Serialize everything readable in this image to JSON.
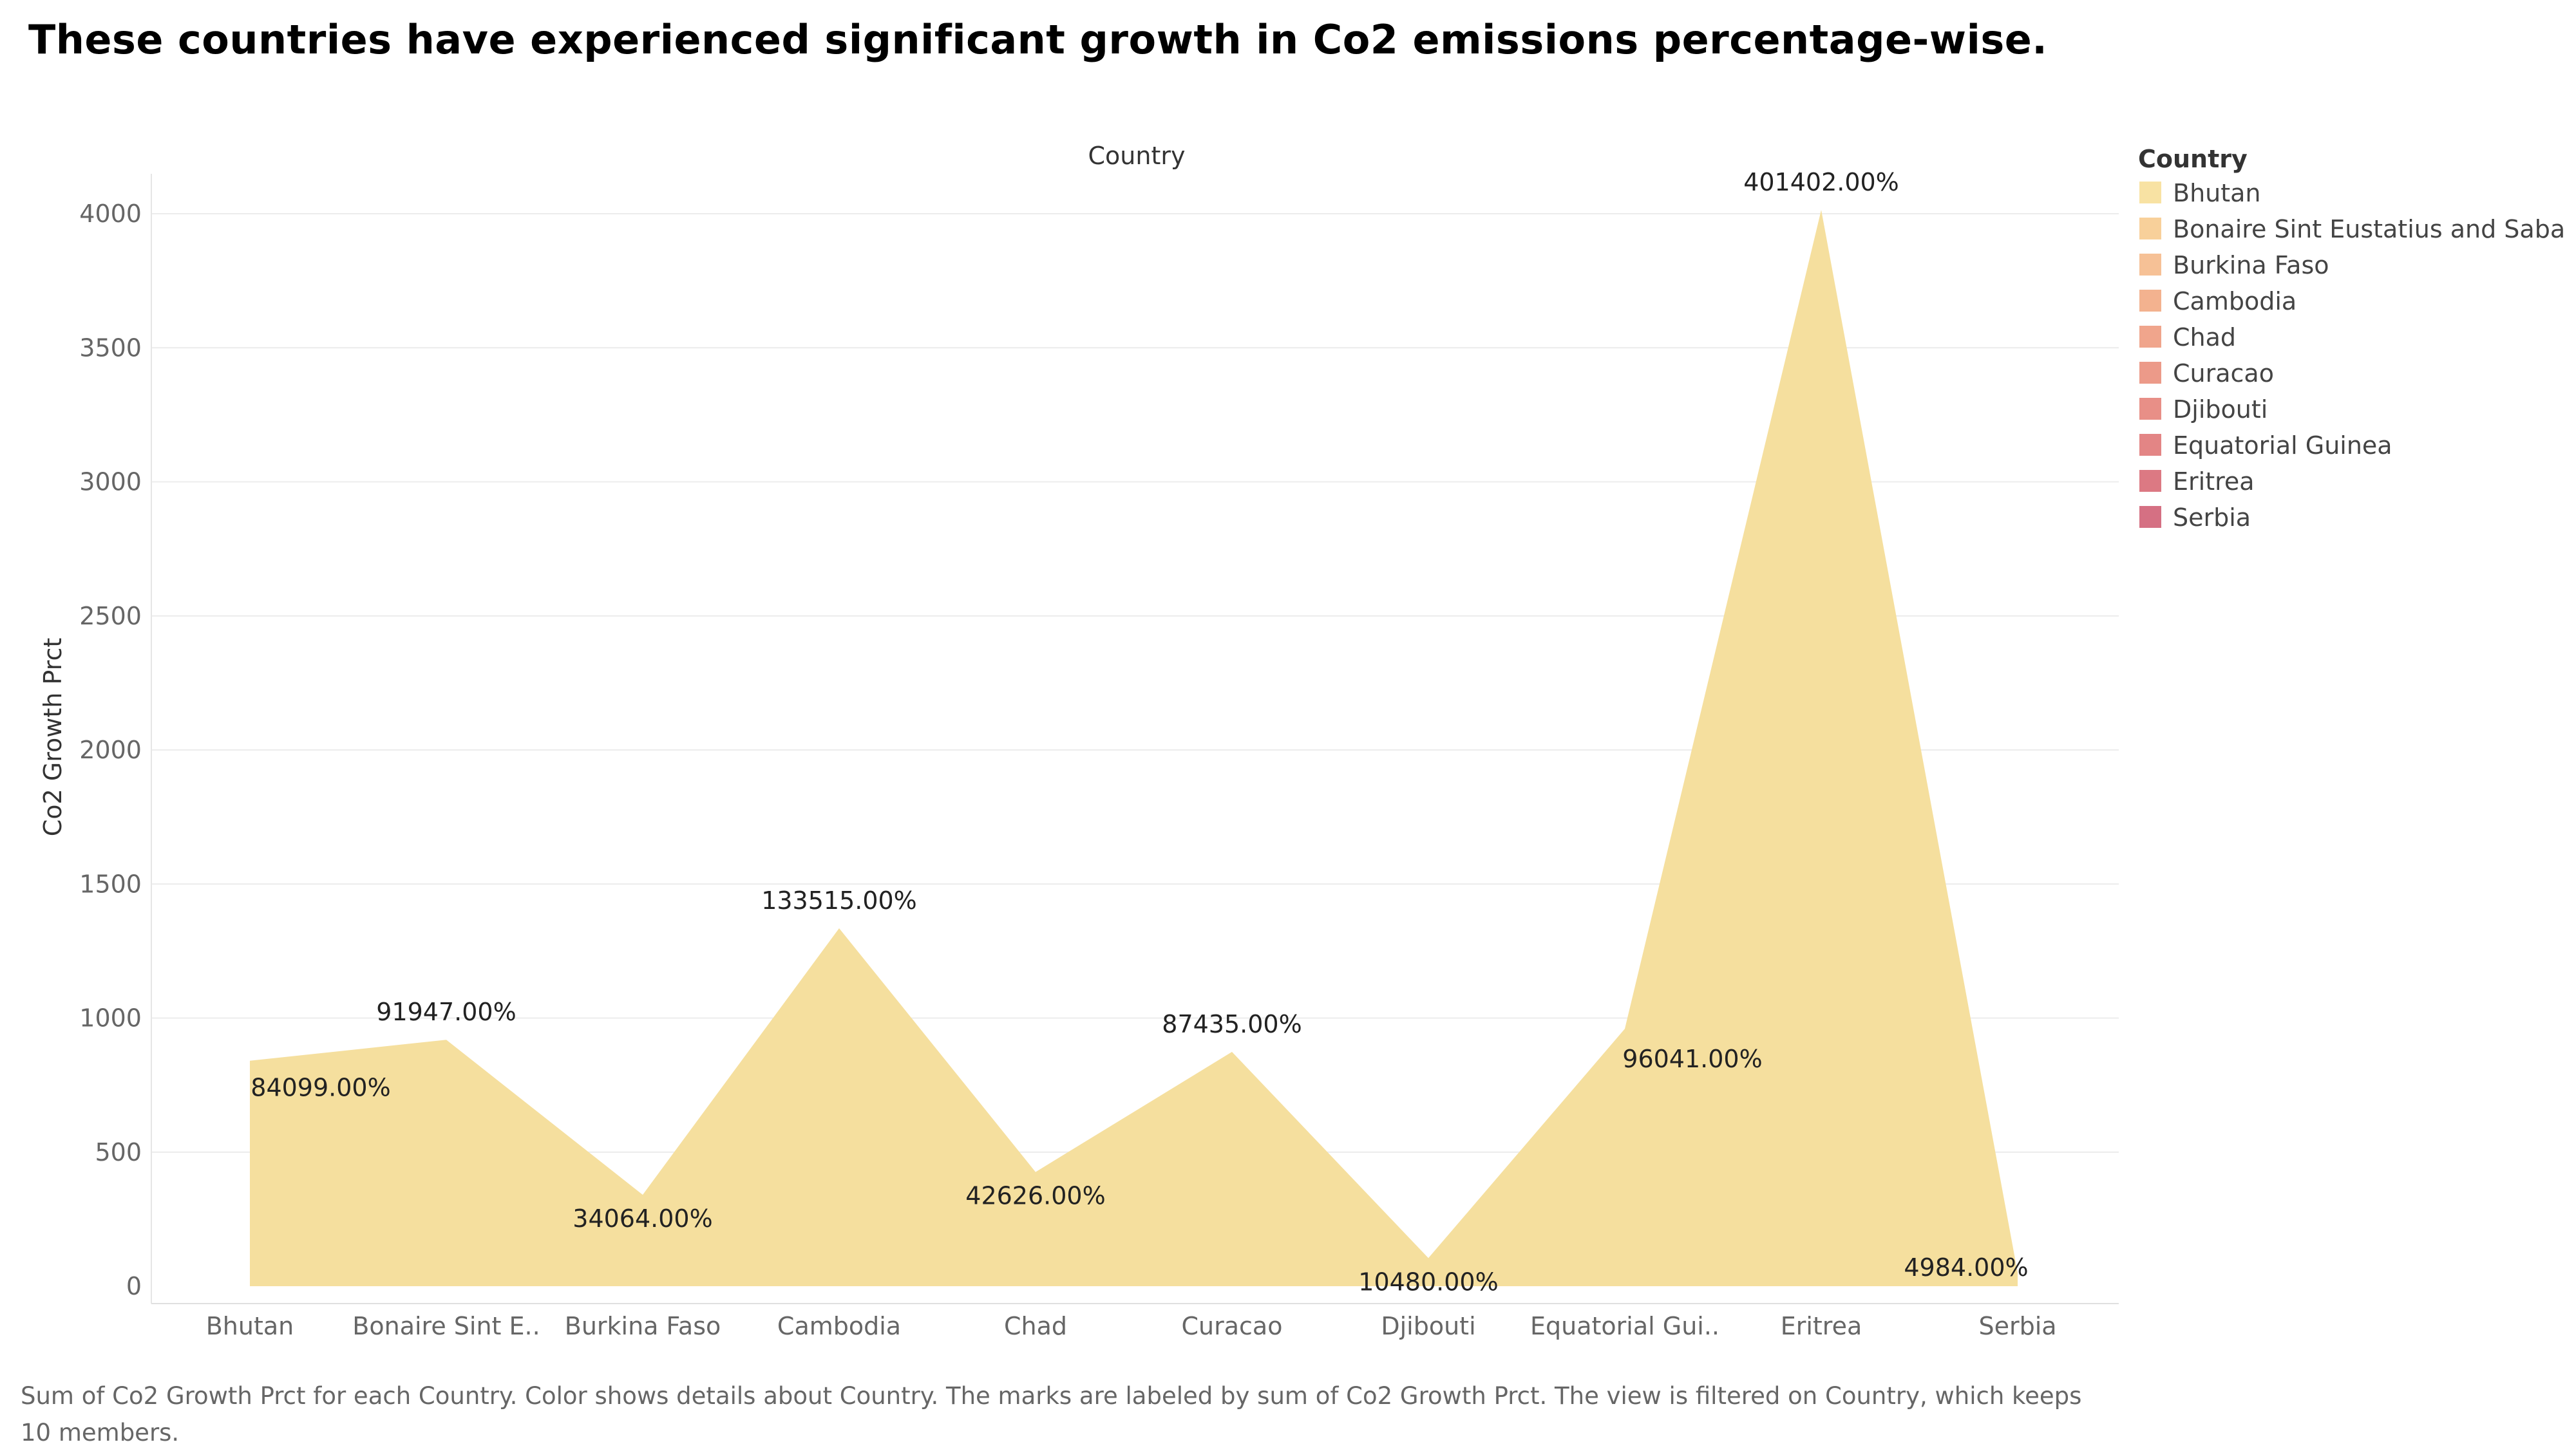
{
  "title": "These countries have experienced significant growth in Co2 emissions percentage-wise.",
  "caption": "Sum of Co2 Growth Prct for each Country.  Color shows details about Country.  The marks are labeled by sum of Co2 Growth Prct. The view is filtered on Country, which keeps 10 members.",
  "chart_data": {
    "type": "area",
    "header": "Country",
    "xlabel": "",
    "ylabel": "Co2 Growth Prct",
    "ylim": [
      0,
      4200
    ],
    "yticks": [
      0,
      500,
      1000,
      1500,
      2000,
      2500,
      3000,
      3500,
      4000
    ],
    "grid": true,
    "categories": [
      "Bhutan",
      "Bonaire Sint Eustatius and Saba",
      "Burkina Faso",
      "Cambodia",
      "Chad",
      "Curacao",
      "Djibouti",
      "Equatorial Guinea",
      "Eritrea",
      "Serbia"
    ],
    "tick_labels": [
      "Bhutan",
      "Bonaire Sint E..",
      "Burkina Faso",
      "Cambodia",
      "Chad",
      "Curacao",
      "Djibouti",
      "Equatorial Gui..",
      "Eritrea",
      "Serbia"
    ],
    "values": [
      841,
      919,
      341,
      1335,
      426,
      874,
      105,
      960,
      4014,
      50
    ],
    "data_labels": [
      "84099.00%",
      "91947.00%",
      "34064.00%",
      "133515.00%",
      "42626.00%",
      "87435.00%",
      "10480.00%",
      "96041.00%",
      "401402.00%",
      "4984.00%"
    ],
    "fill_color": "#f5df9e",
    "legend": {
      "title": "Country",
      "position": "right",
      "items": [
        {
          "label": "Bhutan",
          "color": "#f8e2a3"
        },
        {
          "label": "Bonaire Sint Eustatius and Saba",
          "color": "#f8d09a"
        },
        {
          "label": "Burkina Faso",
          "color": "#f6c196"
        },
        {
          "label": "Cambodia",
          "color": "#f3b28f"
        },
        {
          "label": "Chad",
          "color": "#f0a58c"
        },
        {
          "label": "Curacao",
          "color": "#ec9a89"
        },
        {
          "label": "Djibouti",
          "color": "#e88f87"
        },
        {
          "label": "Equatorial Guinea",
          "color": "#e38585"
        },
        {
          "label": "Eritrea",
          "color": "#dc7983"
        },
        {
          "label": "Serbia",
          "color": "#d57083"
        }
      ]
    }
  }
}
